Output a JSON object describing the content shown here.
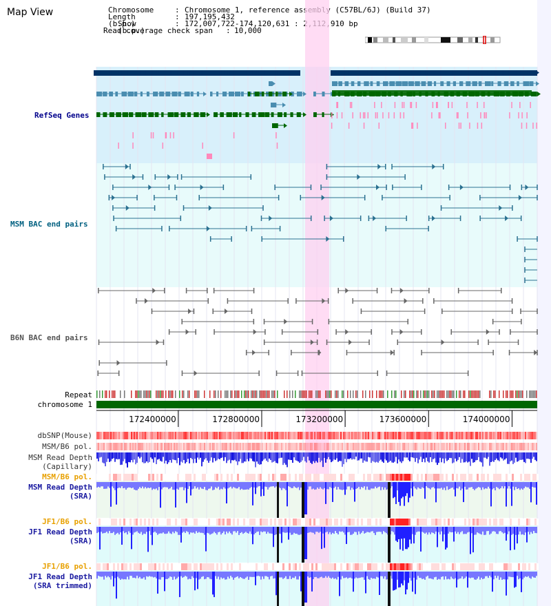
{
  "page": {
    "title": "Map View"
  },
  "info": {
    "chromosome_label": "Chromosome",
    "chromosome_value": "Chromosome 1, reference assembly (C57BL/6J) (Build 37)",
    "length_label": "Length (b.p.)",
    "length_value": "197,195,432",
    "show_label": "Show (b.p.)",
    "show_value": "172,007,722-174,120,631 : 2,112,910 bp",
    "coverage_label": "Read coverage check span",
    "coverage_value": "10,000"
  },
  "tracks": {
    "refseq": "RefSeq Genes",
    "msm_bac": "MSM BAC end pairs",
    "b6n_bac": "B6N BAC end pairs",
    "repeat": "Repeat",
    "chromosome": "chromosome 1",
    "dbsnp": "dbSNP(Mouse)",
    "msm_b6_pol_1": "MSM/B6 pol.",
    "msm_read_depth_cap_1": "MSM Read Depth",
    "msm_read_depth_cap_2": "(Capillary)",
    "msm_b6_pol_2": "MSM/B6 pol.",
    "msm_read_depth_sra_1": "MSM Read Depth",
    "msm_read_depth_sra_2": "(SRA)",
    "jf1_b6_pol_1": "JF1/B6 pol.",
    "jf1_read_depth_sra_1": "JF1 Read Depth",
    "jf1_read_depth_sra_2": "(SRA)",
    "jf1_b6_pol_2": "JF1/B6 pol.",
    "jf1_read_depth_trim_1": "JF1 Read Depth",
    "jf1_read_depth_trim_2": "(SRA trimmed)"
  },
  "axis": {
    "ticks": [
      "172400000",
      "172800000",
      "173200000",
      "173600000",
      "174000000"
    ],
    "range_start": 172007722,
    "range_end": 174120631
  },
  "colors": {
    "highlight": "#ffd0f0",
    "refseq_bg": "#d8f0fb",
    "bac_bg": "#e8fbfb",
    "gene_dark": "#003366",
    "gene_mid": "#4a8db0",
    "gene_green": "#006600",
    "chromosome_bar": "#006600",
    "depth_blue": "#1010e0"
  }
}
